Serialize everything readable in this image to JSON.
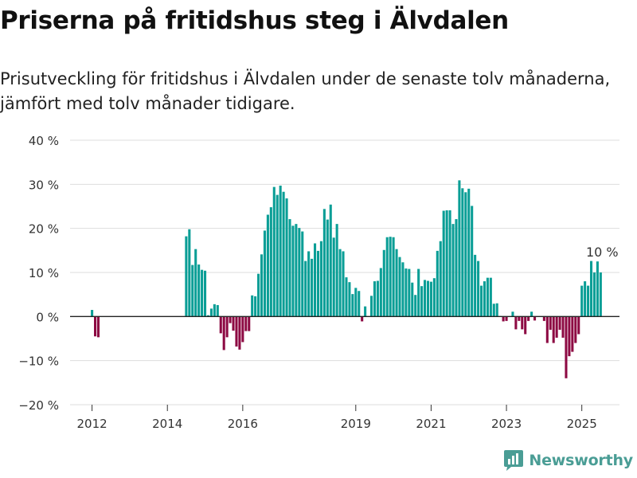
{
  "header": {
    "title": "Priserna på fritidshus steg i Älvdalen",
    "subtitle": "Prisutveckling för fritidshus i Älvdalen under de senaste tolv månaderna, jämfört med tolv månader tidigare."
  },
  "brand": {
    "name": "Newsworthy",
    "icon": "newsworthy-logo-icon",
    "color": "#4a9d95"
  },
  "colors": {
    "positive": "#0a9e96",
    "negative": "#8d0a43",
    "grid": "#dddddd",
    "zero_line": "#222222"
  },
  "chart_data": {
    "type": "bar",
    "ylabel": "",
    "xlabel": "",
    "ylim": [
      -20,
      40
    ],
    "y_ticks": [
      {
        "value": 40,
        "label": "40 %"
      },
      {
        "value": 30,
        "label": "30 %"
      },
      {
        "value": 20,
        "label": "20 %"
      },
      {
        "value": 10,
        "label": "10 %"
      },
      {
        "value": 0,
        "label": "0 %"
      },
      {
        "value": -10,
        "label": "−10 %"
      },
      {
        "value": -20,
        "label": "−20 %"
      }
    ],
    "x_ticks": [
      {
        "label": "2012",
        "at": "2012-01"
      },
      {
        "label": "2014",
        "at": "2014-01"
      },
      {
        "label": "2016",
        "at": "2016-01"
      },
      {
        "label": "2019",
        "at": "2019-01"
      },
      {
        "label": "2021",
        "at": "2021-01"
      },
      {
        "label": "2023",
        "at": "2023-01"
      },
      {
        "label": "2025",
        "at": "2025-01"
      }
    ],
    "x_range": [
      "2011-06",
      "2026-01"
    ],
    "grid": true,
    "annotation": {
      "label": "10 %",
      "at": "2025-08"
    },
    "series": [
      {
        "values": [
          [
            "2012-01",
            1.5
          ],
          [
            "2012-02",
            -4.5
          ],
          [
            "2012-03",
            -4.7
          ],
          [
            "2014-07",
            18.2
          ],
          [
            "2014-08",
            19.8
          ],
          [
            "2014-09",
            11.7
          ],
          [
            "2014-10",
            15.3
          ],
          [
            "2014-11",
            11.8
          ],
          [
            "2014-12",
            10.6
          ],
          [
            "2015-01",
            10.4
          ],
          [
            "2015-02",
            0.3
          ],
          [
            "2015-03",
            1.8
          ],
          [
            "2015-04",
            2.8
          ],
          [
            "2015-05",
            2.6
          ],
          [
            "2015-06",
            -3.8
          ],
          [
            "2015-07",
            -7.6
          ],
          [
            "2015-08",
            -4.7
          ],
          [
            "2015-09",
            -1.5
          ],
          [
            "2015-10",
            -3.2
          ],
          [
            "2015-11",
            -6.8
          ],
          [
            "2015-12",
            -7.5
          ],
          [
            "2016-01",
            -5.8
          ],
          [
            "2016-02",
            -3.3
          ],
          [
            "2016-03",
            -3.3
          ],
          [
            "2016-04",
            4.8
          ],
          [
            "2016-05",
            4.6
          ],
          [
            "2016-06",
            9.7
          ],
          [
            "2016-07",
            14.1
          ],
          [
            "2016-08",
            19.5
          ],
          [
            "2016-09",
            23.1
          ],
          [
            "2016-10",
            24.8
          ],
          [
            "2016-11",
            29.4
          ],
          [
            "2016-12",
            27.6
          ],
          [
            "2017-01",
            29.7
          ],
          [
            "2017-02",
            28.3
          ],
          [
            "2017-03",
            26.8
          ],
          [
            "2017-04",
            22.1
          ],
          [
            "2017-05",
            20.6
          ],
          [
            "2017-06",
            21.0
          ],
          [
            "2017-07",
            20.1
          ],
          [
            "2017-08",
            19.3
          ],
          [
            "2017-09",
            12.6
          ],
          [
            "2017-10",
            14.8
          ],
          [
            "2017-11",
            13.1
          ],
          [
            "2017-12",
            16.6
          ],
          [
            "2018-01",
            14.9
          ],
          [
            "2018-02",
            17.1
          ],
          [
            "2018-03",
            24.4
          ],
          [
            "2018-04",
            22.0
          ],
          [
            "2018-05",
            25.4
          ],
          [
            "2018-06",
            17.9
          ],
          [
            "2018-07",
            21.0
          ],
          [
            "2018-08",
            15.3
          ],
          [
            "2018-09",
            14.8
          ],
          [
            "2018-10",
            8.9
          ],
          [
            "2018-11",
            7.8
          ],
          [
            "2018-12",
            5.1
          ],
          [
            "2019-01",
            6.5
          ],
          [
            "2019-02",
            5.8
          ],
          [
            "2019-03",
            -1.1
          ],
          [
            "2019-04",
            2.3
          ],
          [
            "2019-06",
            4.7
          ],
          [
            "2019-07",
            8.0
          ],
          [
            "2019-08",
            8.1
          ],
          [
            "2019-09",
            11.0
          ],
          [
            "2019-10",
            15.1
          ],
          [
            "2019-11",
            18.0
          ],
          [
            "2019-12",
            18.1
          ],
          [
            "2020-01",
            18.0
          ],
          [
            "2020-02",
            15.3
          ],
          [
            "2020-03",
            13.5
          ],
          [
            "2020-04",
            12.3
          ],
          [
            "2020-05",
            10.9
          ],
          [
            "2020-06",
            10.8
          ],
          [
            "2020-07",
            7.7
          ],
          [
            "2020-08",
            4.9
          ],
          [
            "2020-09",
            10.8
          ],
          [
            "2020-10",
            6.9
          ],
          [
            "2020-11",
            8.3
          ],
          [
            "2020-12",
            8.1
          ],
          [
            "2021-01",
            7.9
          ],
          [
            "2021-02",
            8.7
          ],
          [
            "2021-03",
            14.9
          ],
          [
            "2021-04",
            17.1
          ],
          [
            "2021-05",
            24.0
          ],
          [
            "2021-06",
            24.1
          ],
          [
            "2021-07",
            24.1
          ],
          [
            "2021-08",
            21.0
          ],
          [
            "2021-09",
            22.1
          ],
          [
            "2021-10",
            30.9
          ],
          [
            "2021-11",
            29.1
          ],
          [
            "2021-12",
            28.2
          ],
          [
            "2022-01",
            29.0
          ],
          [
            "2022-02",
            25.1
          ],
          [
            "2022-03",
            14.0
          ],
          [
            "2022-04",
            12.6
          ],
          [
            "2022-05",
            7.0
          ],
          [
            "2022-06",
            8.0
          ],
          [
            "2022-07",
            8.8
          ],
          [
            "2022-08",
            8.8
          ],
          [
            "2022-09",
            2.9
          ],
          [
            "2022-10",
            3.0
          ],
          [
            "2022-11",
            0.1
          ],
          [
            "2022-12",
            -1.1
          ],
          [
            "2023-01",
            -1.0
          ],
          [
            "2023-03",
            1.1
          ],
          [
            "2023-04",
            -2.9
          ],
          [
            "2023-05",
            -1.0
          ],
          [
            "2023-06",
            -2.9
          ],
          [
            "2023-07",
            -4.0
          ],
          [
            "2023-08",
            -1.0
          ],
          [
            "2023-09",
            1.1
          ],
          [
            "2023-10",
            -0.9
          ],
          [
            "2024-01",
            -1.0
          ],
          [
            "2024-02",
            -6.0
          ],
          [
            "2024-03",
            -3.0
          ],
          [
            "2024-04",
            -6.0
          ],
          [
            "2024-05",
            -4.8
          ],
          [
            "2024-06",
            -3.0
          ],
          [
            "2024-07",
            -4.8
          ],
          [
            "2024-08",
            -14.0
          ],
          [
            "2024-09",
            -9.0
          ],
          [
            "2024-10",
            -8.0
          ],
          [
            "2024-11",
            -6.0
          ],
          [
            "2024-12",
            -4.0
          ],
          [
            "2025-01",
            7.0
          ],
          [
            "2025-02",
            8.0
          ],
          [
            "2025-03",
            7.0
          ],
          [
            "2025-04",
            12.6
          ],
          [
            "2025-05",
            10.0
          ],
          [
            "2025-06",
            12.5
          ],
          [
            "2025-07",
            10.0
          ]
        ]
      }
    ]
  }
}
